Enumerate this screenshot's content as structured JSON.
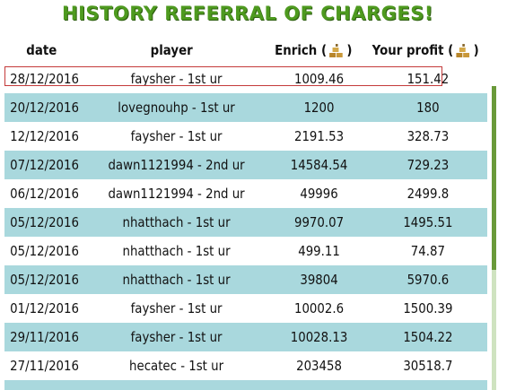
{
  "title": "HISTORY REFERRAL OF CHARGES!",
  "headers": {
    "date": "date",
    "player": "player",
    "enrich": "Enrich (",
    "enrich_close": ")",
    "profit": "Your profit (",
    "profit_close": ")"
  },
  "icons": {
    "currency": "gold-bars-icon"
  },
  "colors": {
    "title": "#4e9a1f",
    "row_alt": "#a9d8dd",
    "highlight_border": "#c43a3a",
    "scroll": "#6a9a3a"
  },
  "rows": [
    {
      "date": "28/12/2016",
      "player": "faysher - 1st ur",
      "enrich": "1009.46",
      "profit": "151.42"
    },
    {
      "date": "20/12/2016",
      "player": "lovegnouhp - 1st ur",
      "enrich": "1200",
      "profit": "180"
    },
    {
      "date": "12/12/2016",
      "player": "faysher - 1st ur",
      "enrich": "2191.53",
      "profit": "328.73"
    },
    {
      "date": "07/12/2016",
      "player": "dawn1121994 - 2nd ur",
      "enrich": "14584.54",
      "profit": "729.23"
    },
    {
      "date": "06/12/2016",
      "player": "dawn1121994 - 2nd ur",
      "enrich": "49996",
      "profit": "2499.8"
    },
    {
      "date": "05/12/2016",
      "player": "nhatthach - 1st ur",
      "enrich": "9970.07",
      "profit": "1495.51"
    },
    {
      "date": "05/12/2016",
      "player": "nhatthach - 1st ur",
      "enrich": "499.11",
      "profit": "74.87"
    },
    {
      "date": "05/12/2016",
      "player": "nhatthach - 1st ur",
      "enrich": "39804",
      "profit": "5970.6"
    },
    {
      "date": "01/12/2016",
      "player": "faysher - 1st ur",
      "enrich": "10002.6",
      "profit": "1500.39"
    },
    {
      "date": "29/11/2016",
      "player": "faysher - 1st ur",
      "enrich": "10028.13",
      "profit": "1504.22"
    },
    {
      "date": "27/11/2016",
      "player": "hecatec - 1st ur",
      "enrich": "203458",
      "profit": "30518.7"
    }
  ]
}
